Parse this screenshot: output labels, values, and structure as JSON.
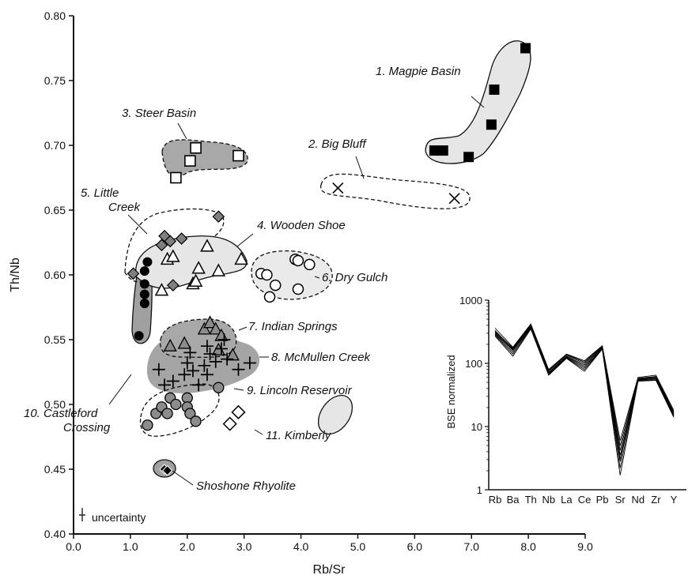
{
  "chart_data": [
    {
      "type": "scatter",
      "title": "",
      "xlabel": "Rb/Sr",
      "ylabel": "Th/Nb",
      "xlim": [
        0.0,
        9.0
      ],
      "ylim": [
        0.4,
        0.8
      ],
      "x_ticks": [
        "0.0",
        "1.0",
        "2.0",
        "3.0",
        "4.0",
        "5.0",
        "6.0",
        "7.0",
        "8.0",
        "9.0"
      ],
      "y_ticks": [
        "0.40",
        "0.45",
        "0.50",
        "0.55",
        "0.60",
        "0.65",
        "0.70",
        "0.75",
        "0.80"
      ],
      "uncertainty_label": "uncertainty",
      "groups": [
        {
          "name": "1. Magpie Basin",
          "marker": "square-filled",
          "field": "light-solid",
          "points": [
            [
              6.35,
              0.696
            ],
            [
              6.5,
              0.696
            ],
            [
              6.95,
              0.691
            ],
            [
              7.35,
              0.716
            ],
            [
              7.4,
              0.743
            ],
            [
              7.95,
              0.775
            ]
          ]
        },
        {
          "name": "2. Big Bluff",
          "marker": "x",
          "field": "dashed",
          "points": [
            [
              4.65,
              0.667
            ],
            [
              6.7,
              0.659
            ]
          ]
        },
        {
          "name": "3. Steer Basin",
          "marker": "square-open",
          "field": "dark-dashed",
          "points": [
            [
              1.8,
              0.675
            ],
            [
              2.05,
              0.688
            ],
            [
              2.15,
              0.698
            ],
            [
              2.9,
              0.692
            ]
          ]
        },
        {
          "name": "4. Wooden Shoe",
          "marker": "triangle-open",
          "field": "light-solid",
          "points": [
            [
              1.55,
              0.588
            ],
            [
              1.65,
              0.612
            ],
            [
              1.75,
              0.614
            ],
            [
              2.1,
              0.593
            ],
            [
              2.15,
              0.595
            ],
            [
              2.2,
              0.605
            ],
            [
              2.35,
              0.622
            ],
            [
              2.55,
              0.603
            ],
            [
              2.95,
              0.612
            ]
          ]
        },
        {
          "name": "5. Little Creek",
          "marker": "diamond-grey",
          "field": "dashed",
          "points": [
            [
              1.05,
              0.601
            ],
            [
              1.55,
              0.623
            ],
            [
              1.6,
              0.63
            ],
            [
              1.7,
              0.626
            ],
            [
              1.9,
              0.628
            ],
            [
              2.55,
              0.645
            ],
            [
              1.75,
              0.592
            ]
          ]
        },
        {
          "name": "6. Dry Gulch",
          "marker": "circle-open",
          "field": "light-dashed",
          "points": [
            [
              3.3,
              0.601
            ],
            [
              3.4,
              0.6
            ],
            [
              3.45,
              0.583
            ],
            [
              3.55,
              0.592
            ],
            [
              3.9,
              0.612
            ],
            [
              3.95,
              0.611
            ],
            [
              3.95,
              0.589
            ],
            [
              4.15,
              0.608
            ]
          ]
        },
        {
          "name": "7. Indian Springs",
          "marker": "triangle-grey",
          "field": "dark-dashed",
          "points": [
            [
              1.7,
              0.545
            ],
            [
              1.95,
              0.547
            ],
            [
              2.3,
              0.558
            ],
            [
              2.4,
              0.563
            ],
            [
              2.5,
              0.558
            ],
            [
              2.6,
              0.553
            ],
            [
              2.8,
              0.538
            ],
            [
              2.55,
              0.542
            ]
          ]
        },
        {
          "name": "8. McMullen Creek",
          "marker": "plus",
          "field": "dark-solid",
          "points": [
            [
              1.5,
              0.527
            ],
            [
              1.6,
              0.515
            ],
            [
              1.75,
              0.518
            ],
            [
              1.95,
              0.523
            ],
            [
              2.0,
              0.532
            ],
            [
              2.05,
              0.54
            ],
            [
              2.1,
              0.526
            ],
            [
              2.3,
              0.53
            ],
            [
              2.35,
              0.523
            ],
            [
              2.4,
              0.539
            ],
            [
              2.5,
              0.533
            ],
            [
              2.6,
              0.543
            ],
            [
              2.65,
              0.55
            ],
            [
              2.7,
              0.535
            ],
            [
              2.9,
              0.527
            ],
            [
              3.1,
              0.532
            ],
            [
              2.35,
              0.545
            ],
            [
              2.2,
              0.515
            ]
          ]
        },
        {
          "name": "9. Lincoln Reservoir",
          "marker": "circle-grey",
          "field": "dashed",
          "points": [
            [
              1.3,
              0.484
            ],
            [
              1.45,
              0.493
            ],
            [
              1.55,
              0.498
            ],
            [
              1.65,
              0.493
            ],
            [
              1.7,
              0.505
            ],
            [
              1.8,
              0.5
            ],
            [
              2.0,
              0.505
            ],
            [
              2.0,
              0.498
            ],
            [
              2.05,
              0.493
            ],
            [
              2.15,
              0.487
            ],
            [
              2.55,
              0.513
            ]
          ]
        },
        {
          "name": "10. Castleford Crossing",
          "marker": "circle-black",
          "field": "grey-solid",
          "points": [
            [
              1.15,
              0.553
            ],
            [
              1.25,
              0.578
            ],
            [
              1.25,
              0.585
            ],
            [
              1.25,
              0.593
            ],
            [
              1.25,
              0.603
            ],
            [
              1.3,
              0.61
            ]
          ]
        },
        {
          "name": "11. Kimberly",
          "marker": "diamond-open",
          "field": "light-solid",
          "points": [
            [
              2.75,
              0.485
            ],
            [
              2.9,
              0.494
            ]
          ]
        },
        {
          "name": "Shoshone Rhyolite",
          "marker": "diamond-black",
          "field": "grey-solid",
          "points": [
            [
              1.6,
              0.45
            ],
            [
              1.65,
              0.449
            ]
          ]
        }
      ]
    },
    {
      "type": "line",
      "title": "",
      "xlabel": "",
      "ylabel": "BSE normalized",
      "y_scale": "log",
      "ylim": [
        1,
        1000
      ],
      "y_ticks": [
        "1",
        "10",
        "100",
        "1000"
      ],
      "categories": [
        "Rb",
        "Ba",
        "Th",
        "Nb",
        "La",
        "Ce",
        "Pb",
        "Sr",
        "Nd",
        "Zr",
        "Y"
      ],
      "series": [
        {
          "values": [
            360,
            180,
            420,
            80,
            140,
            110,
            190,
            6.0,
            60,
            65,
            18
          ]
        },
        {
          "values": [
            330,
            170,
            400,
            75,
            135,
            100,
            185,
            5.0,
            58,
            62,
            17
          ]
        },
        {
          "values": [
            310,
            165,
            390,
            72,
            130,
            95,
            180,
            4.2,
            56,
            60,
            16
          ]
        },
        {
          "values": [
            300,
            160,
            380,
            70,
            128,
            90,
            175,
            3.5,
            55,
            58,
            15.5
          ]
        },
        {
          "values": [
            290,
            150,
            370,
            68,
            125,
            85,
            172,
            2.8,
            54,
            57,
            15
          ]
        },
        {
          "values": [
            280,
            140,
            360,
            66,
            122,
            80,
            170,
            2.2,
            53,
            55,
            14.5
          ]
        },
        {
          "values": [
            270,
            130,
            350,
            65,
            120,
            75,
            168,
            1.7,
            52,
            54,
            14
          ]
        },
        {
          "values": [
            320,
            175,
            410,
            78,
            138,
            105,
            188,
            3.0,
            57,
            61,
            16.5
          ]
        }
      ]
    }
  ]
}
